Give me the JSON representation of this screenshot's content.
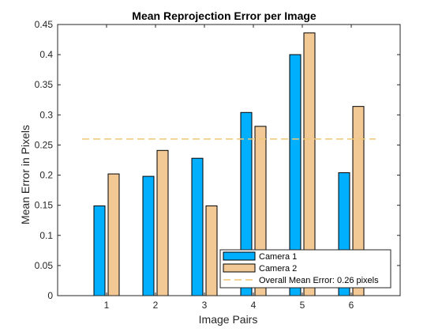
{
  "chart_data": {
    "type": "bar",
    "title": "Mean Reprojection Error per Image",
    "xlabel": "Image Pairs",
    "ylabel": "Mean Error in Pixels",
    "categories": [
      "1",
      "2",
      "3",
      "4",
      "5",
      "6"
    ],
    "series": [
      {
        "name": "Camera 1",
        "values": [
          0.149,
          0.198,
          0.228,
          0.304,
          0.4,
          0.204
        ],
        "color": "#00b0ff"
      },
      {
        "name": "Camera 2",
        "values": [
          0.202,
          0.241,
          0.149,
          0.281,
          0.436,
          0.314
        ],
        "color": "#f2c894"
      }
    ],
    "overall_mean": {
      "name": "Overall Mean Error: 0.26 pixels",
      "value": 0.26,
      "color": "#f0c674"
    },
    "xlim": [
      0,
      7
    ],
    "ylim": [
      0,
      0.45
    ],
    "yticks": [
      "0",
      "0.05",
      "0.1",
      "0.15",
      "0.2",
      "0.25",
      "0.3",
      "0.35",
      "0.4",
      "0.45"
    ],
    "grid": false,
    "legend": "bottom-right"
  }
}
